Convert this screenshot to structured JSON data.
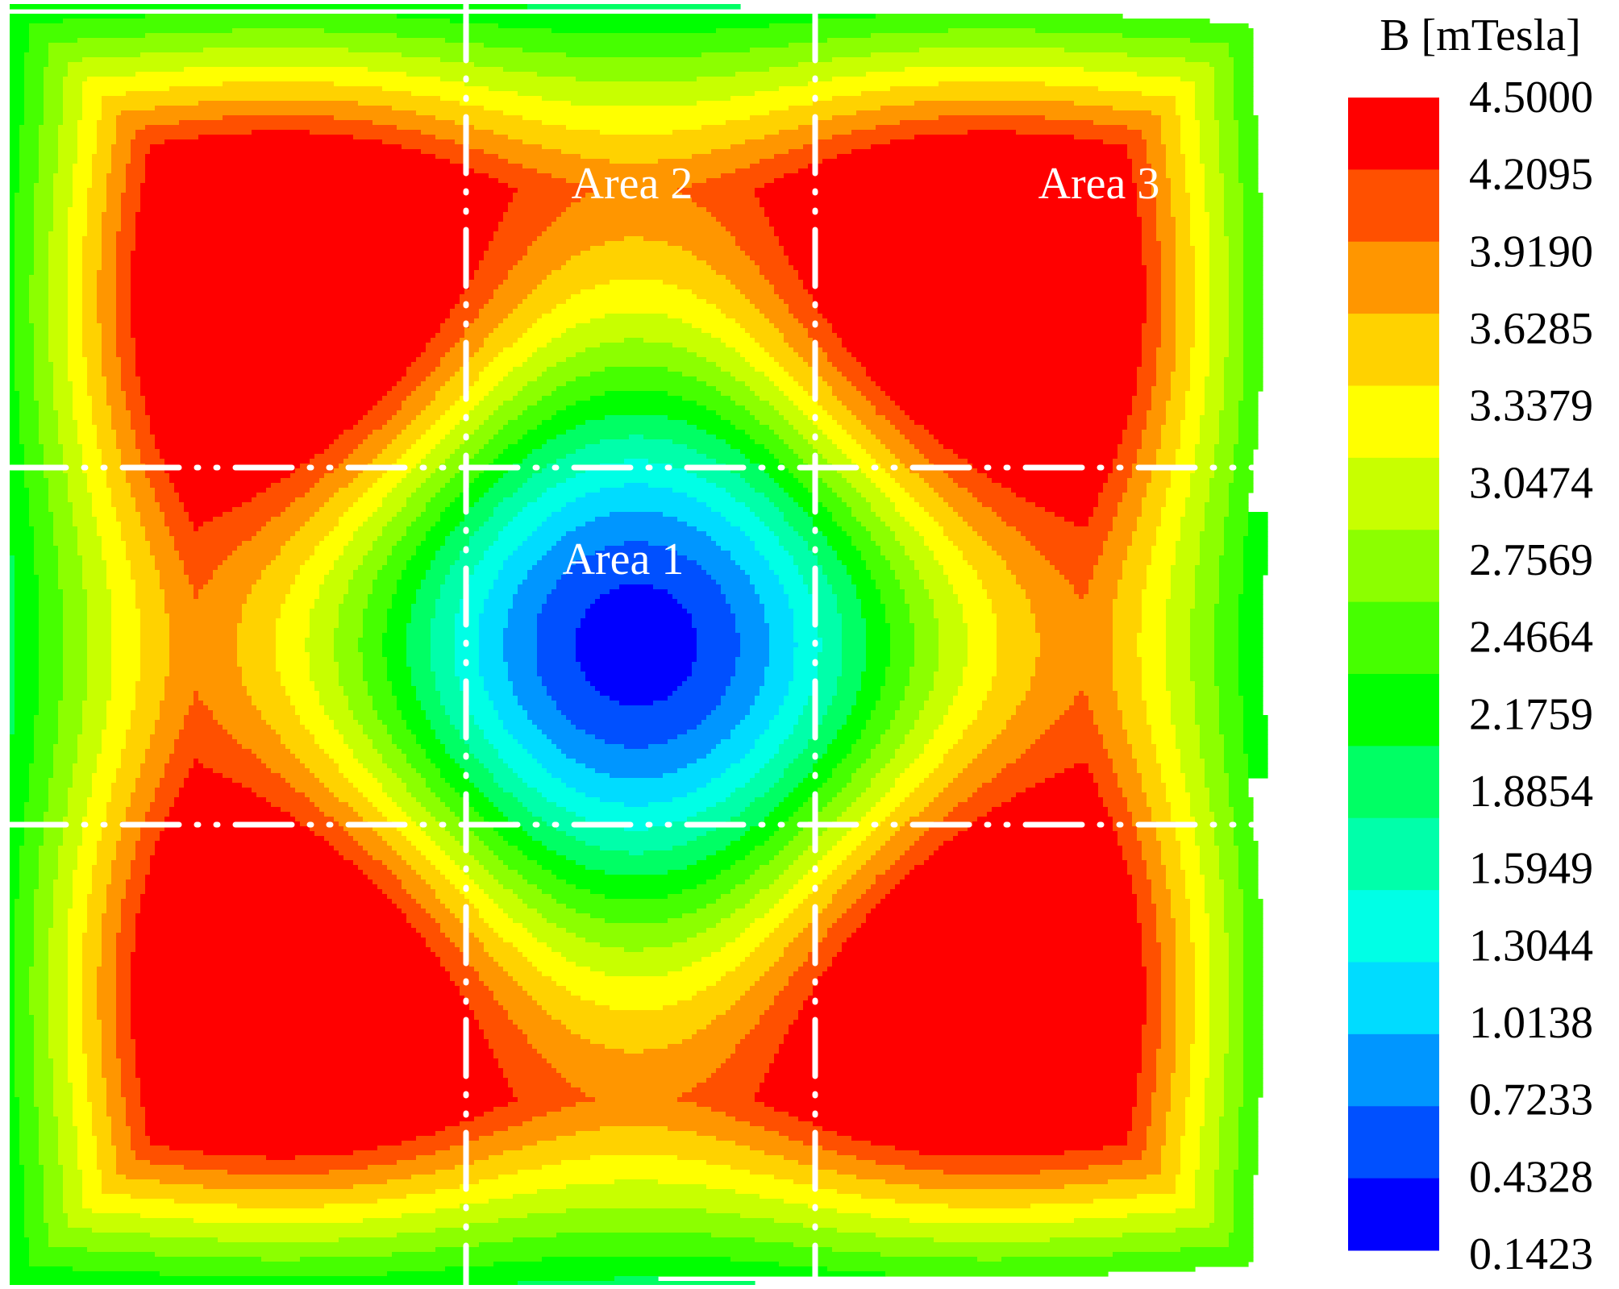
{
  "chart_data": {
    "type": "heatmap",
    "colorbar": {
      "title": "B [mTesla]",
      "ticks": [
        "4.5000",
        "4.2095",
        "3.9190",
        "3.6285",
        "3.3379",
        "3.0474",
        "2.7569",
        "2.4664",
        "2.1759",
        "1.8854",
        "1.5949",
        "1.3044",
        "1.0138",
        "0.7233",
        "0.4328",
        "0.1423"
      ],
      "tick_values": [
        4.5,
        4.2095,
        3.919,
        3.6285,
        3.3379,
        3.0474,
        2.7569,
        2.4664,
        2.1759,
        1.8854,
        1.5949,
        1.3044,
        1.0138,
        0.7233,
        0.4328,
        0.1423
      ],
      "range": [
        0.1423,
        4.5
      ],
      "band_colors": [
        "#ff0000",
        "#ff5000",
        "#ff9600",
        "#ffd200",
        "#ffff00",
        "#c8ff00",
        "#8cff00",
        "#46ff00",
        "#00ff00",
        "#00ff64",
        "#00ffaa",
        "#00ffe6",
        "#00dcff",
        "#0096ff",
        "#0050ff",
        "#0000ff"
      ]
    },
    "area_labels": [
      "Area 1",
      "Area 2",
      "Area 3"
    ],
    "grid": "3x3 dash-dot partition lines",
    "field_summary": {
      "minimum_location": "center",
      "minimum_value": 0.1423,
      "maximum_locations": [
        "top-left",
        "top-right",
        "bottom-left",
        "bottom-right"
      ],
      "maximum_value": 4.5
    }
  }
}
